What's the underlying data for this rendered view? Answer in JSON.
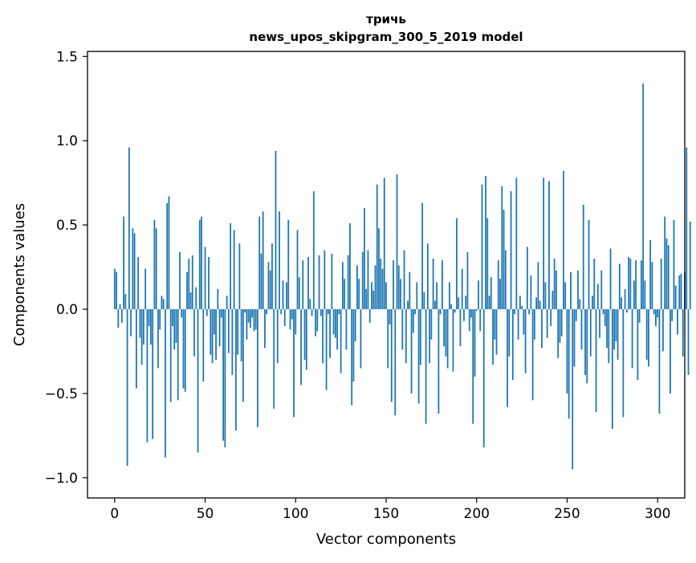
{
  "chart_data": {
    "type": "bar",
    "title_lines": [
      "тричь",
      "news_upos_skipgram_300_5_2019 model"
    ],
    "xlabel": "Vector components",
    "ylabel": "Components values",
    "xlim": [
      -15,
      315
    ],
    "ylim": [
      -1.12,
      1.53
    ],
    "xticks": [
      0,
      50,
      100,
      150,
      200,
      250,
      300
    ],
    "xtick_labels": [
      "0",
      "50",
      "100",
      "150",
      "200",
      "250",
      "300"
    ],
    "yticks": [
      -1.0,
      -0.5,
      0.0,
      0.5,
      1.0,
      1.5
    ],
    "ytick_labels": [
      "−1.0",
      "−0.5",
      "0.0",
      "0.5",
      "1.0",
      "1.5"
    ],
    "grid": false,
    "bar_color": "#1f77b4",
    "values": [
      0.24,
      0.22,
      -0.11,
      0.03,
      -0.08,
      0.55,
      0.09,
      -0.93,
      0.96,
      -0.16,
      0.48,
      0.45,
      -0.47,
      0.31,
      -0.17,
      -0.33,
      -0.21,
      0.24,
      -0.79,
      -0.1,
      -0.21,
      -0.77,
      0.53,
      0.48,
      -0.35,
      -0.12,
      0.08,
      0.06,
      -0.88,
      0.63,
      0.67,
      -0.55,
      -0.1,
      -0.24,
      -0.2,
      -0.54,
      0.34,
      -0.05,
      -0.47,
      -0.49,
      0.22,
      0.3,
      0.1,
      0.32,
      -0.28,
      0.13,
      -0.85,
      0.53,
      0.55,
      -0.43,
      0.37,
      -0.04,
      0.31,
      -0.27,
      -0.32,
      -0.15,
      -0.3,
      0.12,
      -0.22,
      -0.05,
      -0.78,
      -0.82,
      0.08,
      -0.26,
      0.51,
      -0.39,
      0.47,
      -0.72,
      -0.27,
      0.39,
      -0.31,
      -0.55,
      -0.02,
      -0.18,
      -0.08,
      -0.11,
      -0.05,
      -0.13,
      -0.12,
      -0.7,
      0.55,
      0.33,
      0.58,
      -0.23,
      -0.03,
      0.28,
      0.23,
      0.39,
      -0.59,
      0.94,
      -0.32,
      0.58,
      -0.03,
      0.17,
      -0.1,
      0.16,
      0.53,
      -0.12,
      -0.06,
      -0.64,
      -0.15,
      0.47,
      0.19,
      -0.45,
      0.29,
      -0.3,
      -0.36,
      0.31,
      0.06,
      -0.04,
      0.7,
      -0.16,
      -0.13,
      0.32,
      -0.04,
      -0.32,
      0.35,
      -0.48,
      -0.03,
      -0.29,
      0.33,
      -0.15,
      -0.17,
      -0.24,
      -0.03,
      -0.38,
      0.28,
      0.18,
      -0.24,
      0.32,
      0.51,
      -0.57,
      -0.43,
      -0.19,
      0.26,
      0.18,
      -0.35,
      0.34,
      0.6,
      0.12,
      0.35,
      -0.08,
      0.16,
      0.11,
      0.26,
      0.74,
      0.48,
      0.3,
      0.24,
      0.78,
      0.16,
      -0.35,
      -0.09,
      -0.55,
      0.29,
      -0.63,
      0.8,
      0.26,
      0.18,
      -0.24,
      0.35,
      -0.32,
      0.05,
      0.22,
      -0.5,
      -0.14,
      -0.03,
      0.16,
      -0.56,
      -0.33,
      0.63,
      0.1,
      -0.68,
      0.39,
      -0.32,
      -0.18,
      0.3,
      0.05,
      0.16,
      -0.62,
      -0.03,
      0.29,
      -0.22,
      -0.28,
      -0.35,
      0.16,
      0.03,
      -0.37,
      -0.02,
      0.54,
      0.07,
      -0.22,
      0.24,
      -0.07,
      0.08,
      0.34,
      -0.13,
      -0.05,
      -0.68,
      -0.4,
      -0.01,
      0.17,
      -0.13,
      0.74,
      -0.82,
      0.79,
      0.54,
      0.08,
      0.19,
      -0.33,
      -0.18,
      -0.27,
      0.29,
      0.18,
      0.73,
      0.59,
      0.35,
      -0.58,
      -0.28,
      0.7,
      -0.42,
      -0.03,
      0.78,
      -0.18,
      0.08,
      0.02,
      -0.15,
      -0.38,
      0.37,
      -0.03,
      0.2,
      -0.54,
      -0.18,
      0.07,
      0.28,
      0.05,
      -0.23,
      0.78,
      0.16,
      -0.17,
      0.76,
      -0.1,
      0.11,
      0.3,
      0.23,
      -0.29,
      -0.2,
      -0.16,
      0.82,
      0.16,
      -0.5,
      -0.65,
      0.22,
      -0.95,
      -0.34,
      -0.07,
      0.23,
      0.06,
      -0.24,
      0.62,
      -0.39,
      -0.44,
      0.53,
      -0.28,
      0.08,
      0.3,
      -0.61,
      0.15,
      -0.17,
      0.23,
      -0.03,
      -0.1,
      -0.23,
      -0.32,
      0.36,
      -0.71,
      -0.24,
      -0.19,
      -0.3,
      0.27,
      0.07,
      -0.64,
      0.12,
      -0.02,
      0.31,
      0.3,
      -0.35,
      0.17,
      0.29,
      -0.42,
      -0.08,
      0.29,
      1.34,
      0.17,
      -0.3,
      -0.34,
      0.41,
      0.28,
      -0.03,
      -0.1,
      -0.05,
      -0.62,
      0.3,
      -0.25,
      0.55,
      0.42,
      0.38,
      -0.5,
      -0.07,
      0.53,
      0.14,
      -0.15,
      0.2,
      0.21,
      -0.28,
      0.22,
      0.96,
      -0.39,
      0.52
    ]
  }
}
